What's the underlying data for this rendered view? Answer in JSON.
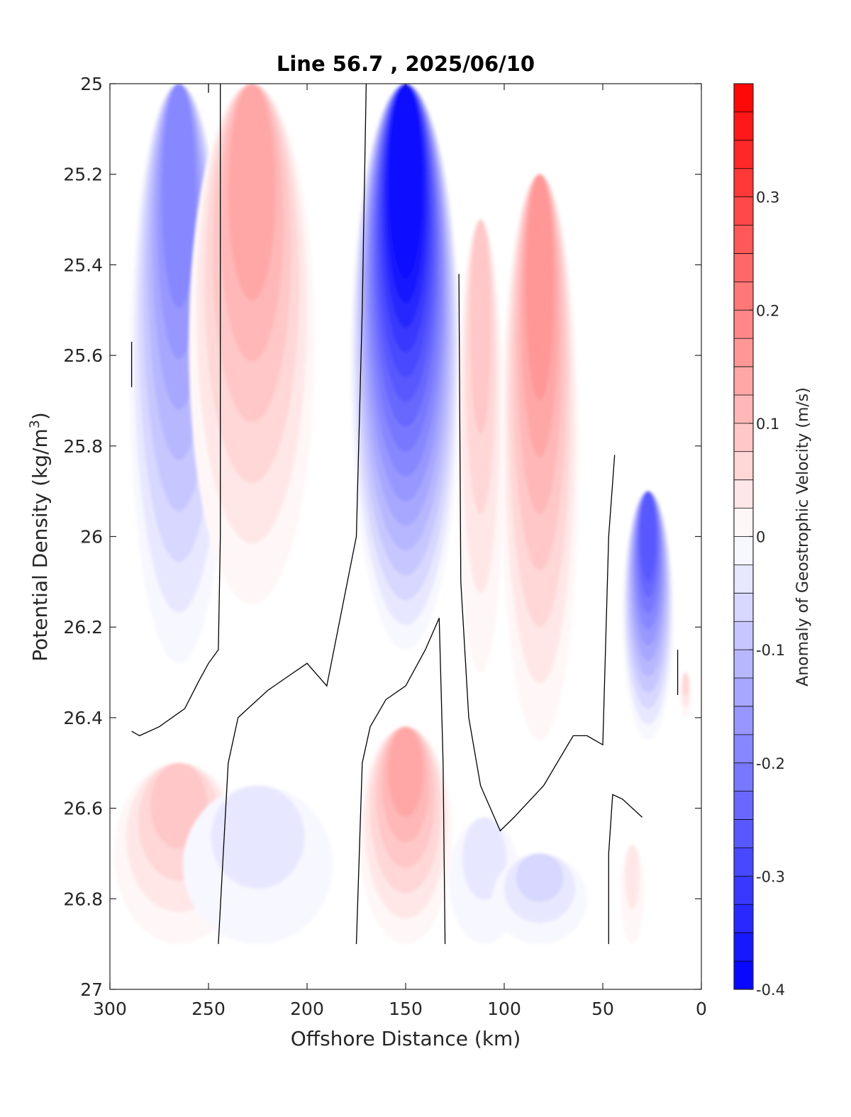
{
  "chart_data": {
    "type": "heatmap",
    "subtype": "filled-contour",
    "title": "Line 56.7 , 2025/06/10",
    "xlabel": "Offshore Distance (km)",
    "ylabel_main": "Potential Density (kg/m",
    "ylabel_sup": "3",
    "ylabel_close": ")",
    "xlim": [
      300,
      0
    ],
    "ylim": [
      25,
      27
    ],
    "x_reversed": true,
    "y_reversed": true,
    "x_ticks": [
      300,
      250,
      200,
      150,
      100,
      50,
      0
    ],
    "x_tick_labels": [
      "300",
      "250",
      "200",
      "150",
      "100",
      "50",
      "0"
    ],
    "y_ticks": [
      25,
      25.2,
      25.4,
      25.6,
      25.8,
      26,
      26.2,
      26.4,
      26.6,
      26.8,
      27
    ],
    "y_tick_labels": [
      "25",
      "25.2",
      "25.4",
      "25.6",
      "25.8",
      "26",
      "26.2",
      "26.4",
      "26.6",
      "26.8",
      "27"
    ],
    "colorbar": {
      "label": "Anomaly of Geostrophic Velocity (m/s)",
      "range": [
        -0.4,
        0.4
      ],
      "level_step": 0.025,
      "ticks": [
        -0.4,
        -0.3,
        -0.2,
        -0.1,
        0,
        0.1,
        0.2,
        0.3
      ],
      "tick_labels": [
        "-0.4",
        "-0.3",
        "-0.2",
        "-0.1",
        "0",
        "0.1",
        "0.2",
        "0.3"
      ],
      "negative_color": "#0000ff",
      "positive_color": "#ff0000",
      "zero_color": "#ffffff"
    },
    "features": [
      {
        "x_center": 265,
        "x_half_width": 25,
        "y_top": 25.0,
        "y_bottom": 26.28,
        "peak_velocity": -0.2
      },
      {
        "x_center": 228,
        "x_half_width": 32,
        "y_top": 25.0,
        "y_bottom": 26.15,
        "peak_velocity": 0.15
      },
      {
        "x_center": 150,
        "x_half_width": 28,
        "y_top": 25.0,
        "y_bottom": 26.25,
        "peak_velocity": -0.4
      },
      {
        "x_center": 82,
        "x_half_width": 20,
        "y_top": 25.2,
        "y_bottom": 26.45,
        "peak_velocity": 0.18
      },
      {
        "x_center": 112,
        "x_half_width": 12,
        "y_top": 25.3,
        "y_bottom": 26.3,
        "peak_velocity": 0.1
      },
      {
        "x_center": 27,
        "x_half_width": 13,
        "y_top": 25.9,
        "y_bottom": 26.45,
        "peak_velocity": -0.27
      },
      {
        "x_center": 265,
        "x_half_width": 33,
        "y_top": 26.5,
        "y_bottom": 26.9,
        "peak_velocity": 0.1
      },
      {
        "x_center": 225,
        "x_half_width": 38,
        "y_top": 26.55,
        "y_bottom": 26.9,
        "peak_velocity": -0.06
      },
      {
        "x_center": 150,
        "x_half_width": 24,
        "y_top": 26.42,
        "y_bottom": 26.9,
        "peak_velocity": 0.15
      },
      {
        "x_center": 110,
        "x_half_width": 18,
        "y_top": 26.62,
        "y_bottom": 26.9,
        "peak_velocity": -0.06
      },
      {
        "x_center": 82,
        "x_half_width": 24,
        "y_top": 26.7,
        "y_bottom": 26.9,
        "peak_velocity": -0.07
      },
      {
        "x_center": 35,
        "x_half_width": 6,
        "y_top": 26.68,
        "y_bottom": 26.9,
        "peak_velocity": 0.06
      },
      {
        "x_center": 8,
        "x_half_width": 3,
        "y_top": 26.3,
        "y_bottom": 26.4,
        "peak_velocity": 0.07
      }
    ],
    "zero_contours": [
      {
        "x": [
          289,
          285,
          275,
          262,
          255,
          250,
          245,
          244,
          244,
          244
        ],
        "y": [
          26.43,
          26.44,
          26.42,
          26.38,
          26.32,
          26.28,
          26.25,
          26.0,
          25.5,
          25.0
        ]
      },
      {
        "x": [
          289,
          289
        ],
        "y": [
          25.57,
          25.67
        ]
      },
      {
        "x": [
          250,
          250
        ],
        "y": [
          25.0,
          25.02
        ]
      },
      {
        "x": [
          245,
          240,
          235,
          220,
          210,
          200,
          190,
          175,
          172,
          170
        ],
        "y": [
          26.9,
          26.5,
          26.4,
          26.34,
          26.31,
          26.28,
          26.33,
          26.0,
          25.5,
          25.0
        ]
      },
      {
        "x": [
          175,
          172,
          168,
          160,
          150,
          140,
          133,
          131,
          130
        ],
        "y": [
          26.9,
          26.5,
          26.42,
          26.36,
          26.33,
          26.25,
          26.18,
          26.5,
          26.9
        ]
      },
      {
        "x": [
          123,
          122,
          118,
          112,
          102,
          95,
          80,
          65,
          58,
          50,
          47,
          44
        ],
        "y": [
          25.42,
          26.1,
          26.4,
          26.55,
          26.65,
          26.62,
          26.55,
          26.44,
          26.44,
          26.46,
          26.0,
          25.82
        ]
      },
      {
        "x": [
          47,
          47,
          45,
          40,
          30
        ],
        "y": [
          26.9,
          26.7,
          26.57,
          26.58,
          26.62
        ]
      },
      {
        "x": [
          12,
          12
        ],
        "y": [
          26.25,
          26.35
        ]
      }
    ]
  }
}
